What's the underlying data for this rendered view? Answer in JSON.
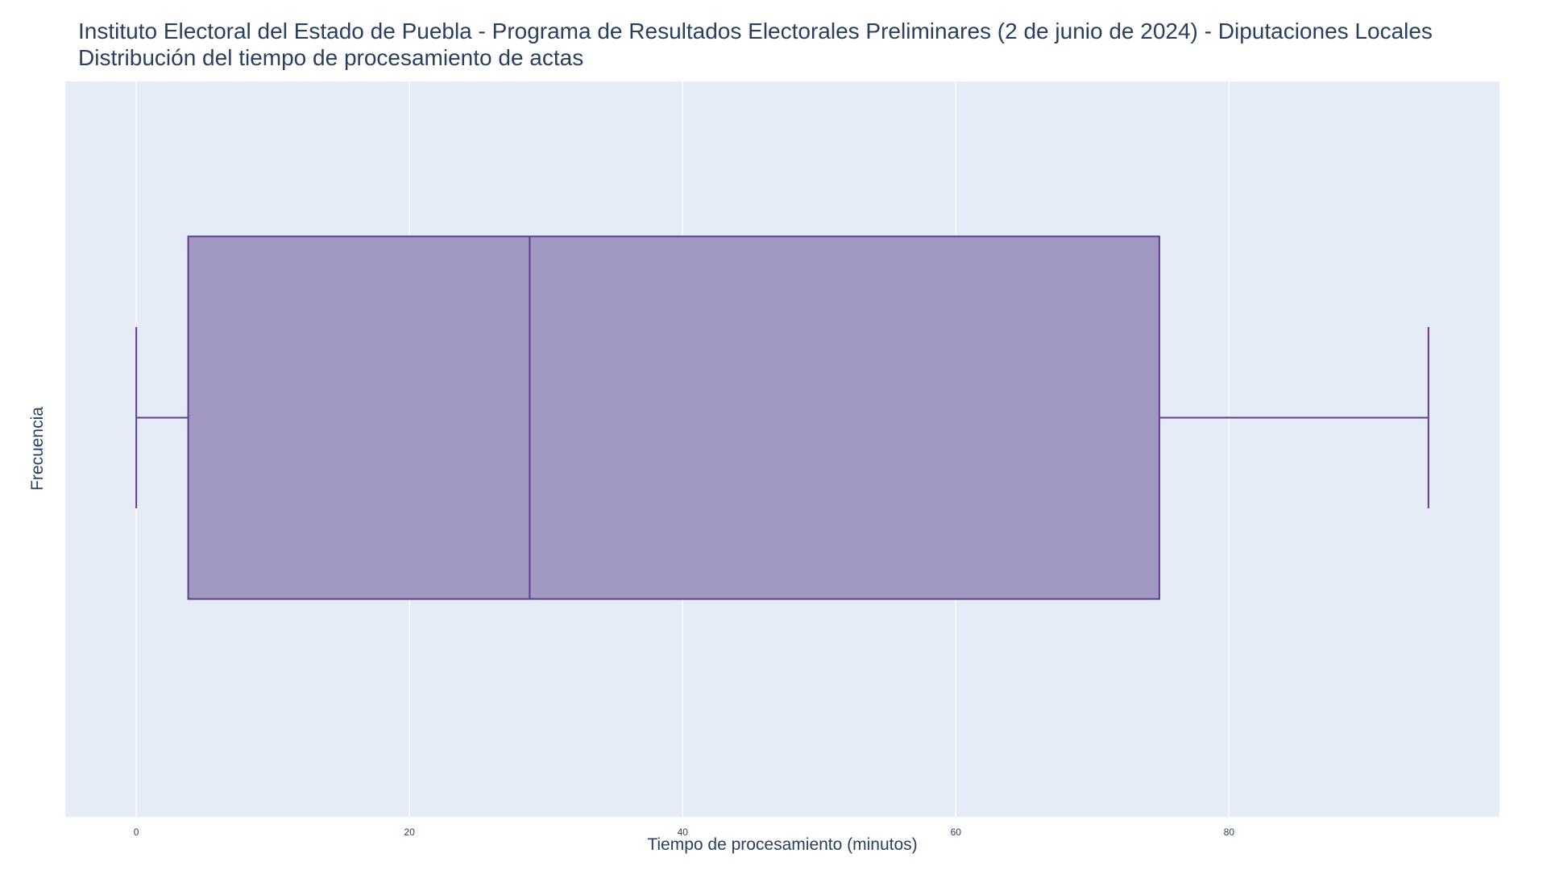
{
  "title": {
    "line1": "Instituto Electoral del Estado de Puebla - Programa de Resultados Electorales Preliminares (2 de junio de 2024) - Diputaciones Locales",
    "line2": "Distribución del tiempo de procesamiento de actas"
  },
  "colors": {
    "plot_background": "#e5ecf6",
    "grid": "#ffffff",
    "box_fill": "#a098c1",
    "box_line": "#5b3f8f",
    "text": "#2a3f5f"
  },
  "chart_data": {
    "type": "box",
    "orientation": "horizontal",
    "title": "Instituto Electoral del Estado de Puebla - Programa de Resultados Electorales Preliminares (2 de junio de 2024) - Diputaciones Locales",
    "subtitle": "Distribución del tiempo de procesamiento de actas",
    "xlabel": "Tiempo de procesamiento (minutos)",
    "ylabel": "Frecuencia",
    "xlim": [
      -5.2,
      99.8
    ],
    "xticks": [
      0,
      20,
      40,
      60,
      80
    ],
    "grid": true,
    "legend": "none",
    "box": {
      "min": 0,
      "q1": 3.8,
      "median": 28.8,
      "q3": 74.9,
      "max": 94.6
    }
  }
}
